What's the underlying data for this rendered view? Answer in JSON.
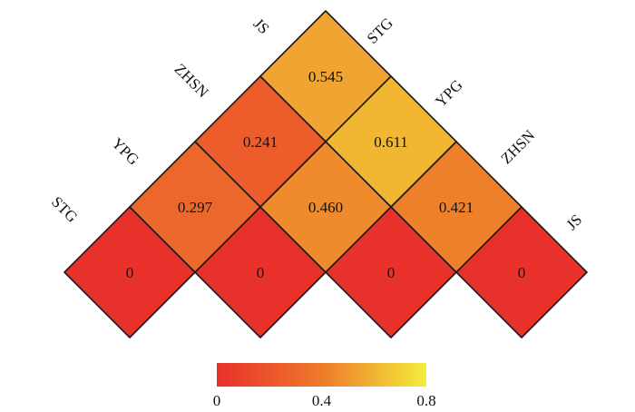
{
  "chart_data": {
    "type": "heatmap",
    "layout": "triangular-diamond",
    "labels": [
      "STG",
      "YPG",
      "ZHSN",
      "JS"
    ],
    "cells": [
      {
        "row": "STG",
        "col": "STG",
        "value": 0,
        "label": "0"
      },
      {
        "row": "YPG",
        "col": "YPG",
        "value": 0,
        "label": "0"
      },
      {
        "row": "ZHSN",
        "col": "ZHSN",
        "value": 0,
        "label": "0"
      },
      {
        "row": "JS",
        "col": "JS",
        "value": 0,
        "label": "0"
      },
      {
        "row": "STG",
        "col": "YPG",
        "value": 0.297,
        "label": "0.297"
      },
      {
        "row": "YPG",
        "col": "ZHSN",
        "value": 0.46,
        "label": "0.460"
      },
      {
        "row": "ZHSN",
        "col": "JS",
        "value": 0.421,
        "label": "0.421"
      },
      {
        "row": "STG",
        "col": "ZHSN",
        "value": 0.241,
        "label": "0.241"
      },
      {
        "row": "YPG",
        "col": "JS",
        "value": 0.611,
        "label": "0.611"
      },
      {
        "row": "STG",
        "col": "JS",
        "value": 0.545,
        "label": "0.545"
      }
    ],
    "colorbar": {
      "min": 0,
      "max": 0.8,
      "ticks": [
        "0",
        "0.4",
        "0.8"
      ],
      "colors": [
        "#e8312b",
        "#ee7a2b",
        "#f3ed3b"
      ]
    }
  }
}
